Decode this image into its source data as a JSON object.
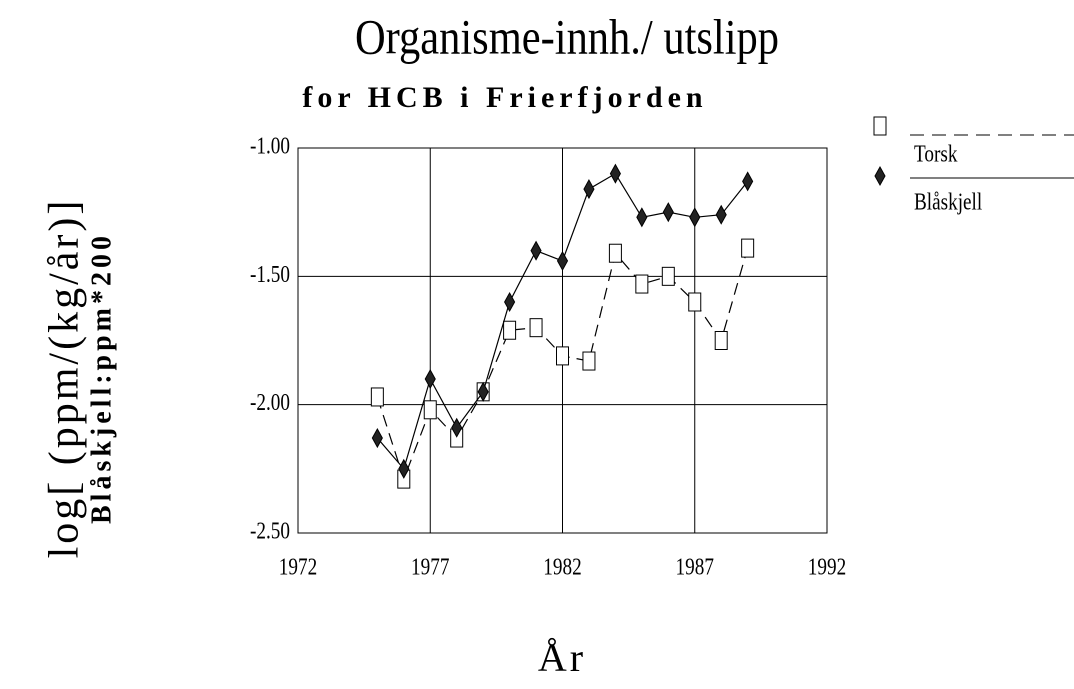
{
  "chart_data": {
    "type": "line",
    "title": "Organisme-innh./ utslipp",
    "subtitle": "for HCB i Frierfjorden",
    "x_label": "År",
    "y_label": [
      "log[ (ppm/(kg/år)]",
      "Blåskjell:ppm*200"
    ],
    "x": [
      1975,
      1976,
      1977,
      1978,
      1979,
      1980,
      1981,
      1982,
      1983,
      1984,
      1985,
      1986,
      1987,
      1988,
      1989
    ],
    "series": [
      {
        "name": "Torsk",
        "color": "#000000",
        "marker": "square",
        "dash": true,
        "values": [
          -1.97,
          -2.29,
          -2.02,
          -2.13,
          -1.95,
          -1.71,
          -1.7,
          -1.81,
          -1.83,
          -1.41,
          -1.53,
          -1.5,
          -1.6,
          -1.75,
          -1.39
        ]
      },
      {
        "name": "Blåskjell",
        "color": "#000000",
        "marker": "diamond",
        "dash": false,
        "values": [
          -2.13,
          -2.25,
          -1.9,
          -2.09,
          -1.95,
          -1.6,
          -1.4,
          -1.44,
          -1.16,
          -1.1,
          -1.27,
          -1.25,
          -1.27,
          -1.26,
          -1.13
        ]
      }
    ],
    "xlim": [
      1972,
      1992
    ],
    "xticks": [
      1972,
      1977,
      1982,
      1987,
      1992
    ],
    "ylim": [
      -2.5,
      -1.0
    ],
    "yticks": [
      {
        "value": -2.5,
        "label": "-2.50"
      },
      {
        "value": -2.0,
        "label": "-2.00"
      },
      {
        "value": -1.5,
        "label": "-1.50"
      },
      {
        "value": -1.0,
        "label": "-1.00"
      }
    ],
    "grid": true
  }
}
